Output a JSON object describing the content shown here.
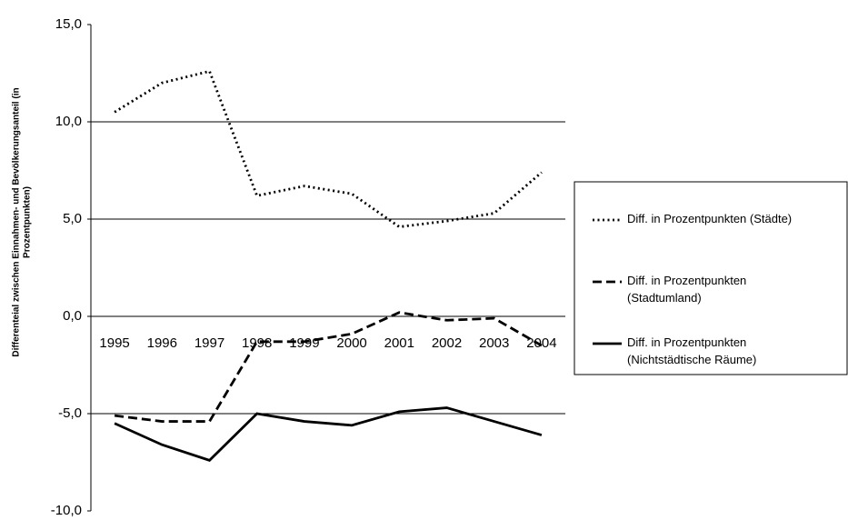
{
  "chart_data": {
    "type": "line",
    "ylabel": [
      "Differenteial  zwischen Einnahmen- und Bevölkerungsanteil  (in",
      "Prozentpunkten)"
    ],
    "categories": [
      "1995",
      "1996",
      "1997",
      "1998",
      "1999",
      "2000",
      "2001",
      "2002",
      "2003",
      "2004"
    ],
    "series": [
      {
        "name": "Diff. in Prozentpunkten  (Städte)",
        "color": "#000000",
        "style": "dotted",
        "values": [
          10.5,
          12.0,
          12.6,
          6.2,
          6.7,
          6.3,
          4.6,
          4.9,
          5.3,
          7.4
        ]
      },
      {
        "name": "Diff. in Prozentpunkten\n(Stadtumland)",
        "color": "#000000",
        "style": "dashed",
        "values": [
          -5.1,
          -5.4,
          -5.4,
          -1.3,
          -1.3,
          -0.9,
          0.2,
          -0.2,
          -0.1,
          -1.5
        ]
      },
      {
        "name": "Diff. in Prozentpunkten\n(Nichtstädtische Räume)",
        "color": "#000000",
        "style": "solid",
        "values": [
          -5.5,
          -6.6,
          -7.4,
          -5.0,
          -5.4,
          -5.6,
          -4.9,
          -4.7,
          -5.4,
          -6.1
        ]
      }
    ],
    "ylim": [
      -10,
      15
    ],
    "yticks": [
      {
        "value": -10,
        "label": "-10,0"
      },
      {
        "value": -5,
        "label": "-5,0"
      },
      {
        "value": 0,
        "label": "0,0"
      },
      {
        "value": 5,
        "label": "5,0"
      },
      {
        "value": 10,
        "label": "10,0"
      },
      {
        "value": 15,
        "label": "15,0"
      }
    ],
    "grid": true,
    "legend": "right"
  }
}
